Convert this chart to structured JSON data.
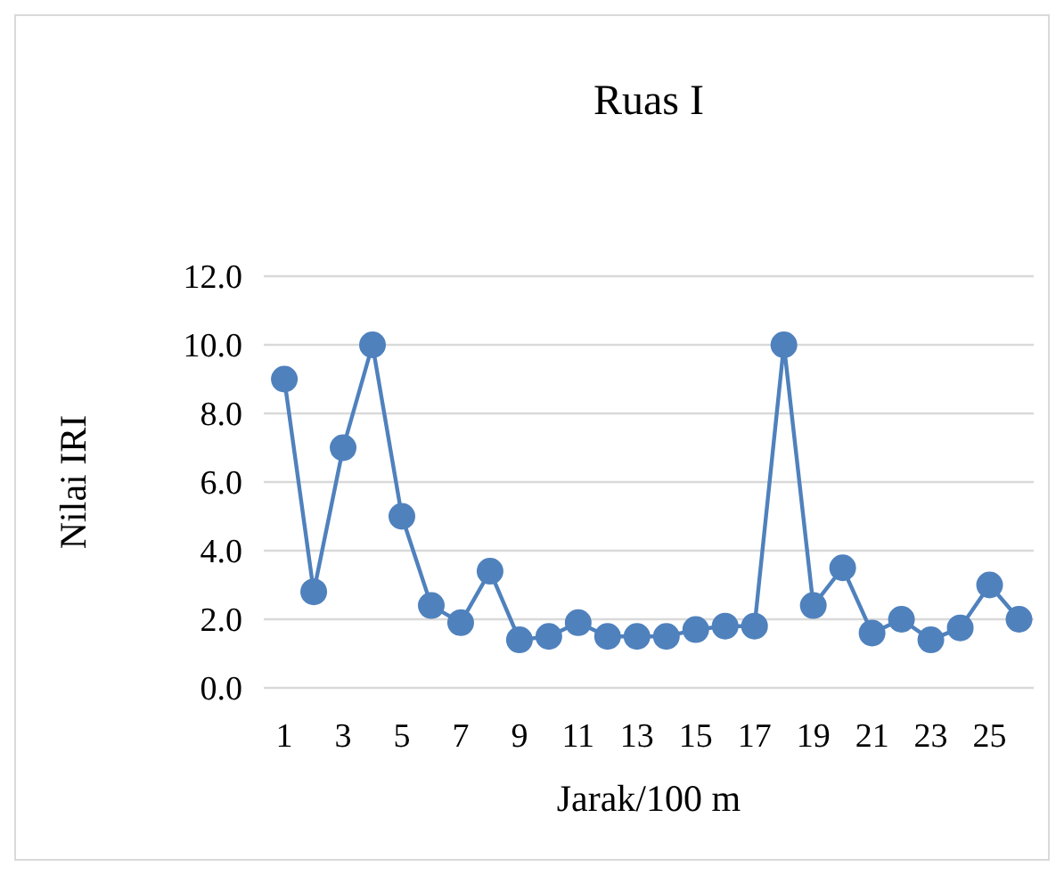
{
  "chart_data": {
    "type": "line",
    "title": "Ruas I",
    "xlabel": "Jarak/100 m",
    "ylabel": "Nilai IRI",
    "x": [
      1,
      2,
      3,
      4,
      5,
      6,
      7,
      8,
      9,
      10,
      11,
      12,
      13,
      14,
      15,
      16,
      17,
      18,
      19,
      20,
      21,
      22,
      23,
      24,
      25,
      26
    ],
    "xlim": [
      0.3,
      26.5
    ],
    "xticks": [
      1,
      3,
      5,
      7,
      9,
      11,
      13,
      15,
      17,
      19,
      21,
      23,
      25
    ],
    "series": [
      {
        "color": "#4f81bd",
        "values": [
          9,
          2.8,
          7,
          10,
          5,
          2.4,
          1.9,
          3.4,
          1.4,
          1.5,
          1.9,
          1.5,
          1.5,
          1.5,
          1.7,
          1.8,
          1.8,
          10,
          2.4,
          3.5,
          1.6,
          2.0,
          1.4,
          1.75,
          3.0,
          2.0
        ]
      }
    ],
    "ylim": [
      0,
      12
    ],
    "yticks": [
      {
        "value": 0,
        "label": "0.0"
      },
      {
        "value": 2,
        "label": "2.0"
      },
      {
        "value": 4,
        "label": "4.0"
      },
      {
        "value": 6,
        "label": "6.0"
      },
      {
        "value": 8,
        "label": "8.0"
      },
      {
        "value": 10,
        "label": "10.0"
      },
      {
        "value": 12,
        "label": "12.0"
      }
    ],
    "grid": "y",
    "marker": "circle",
    "line_style": "solid"
  }
}
